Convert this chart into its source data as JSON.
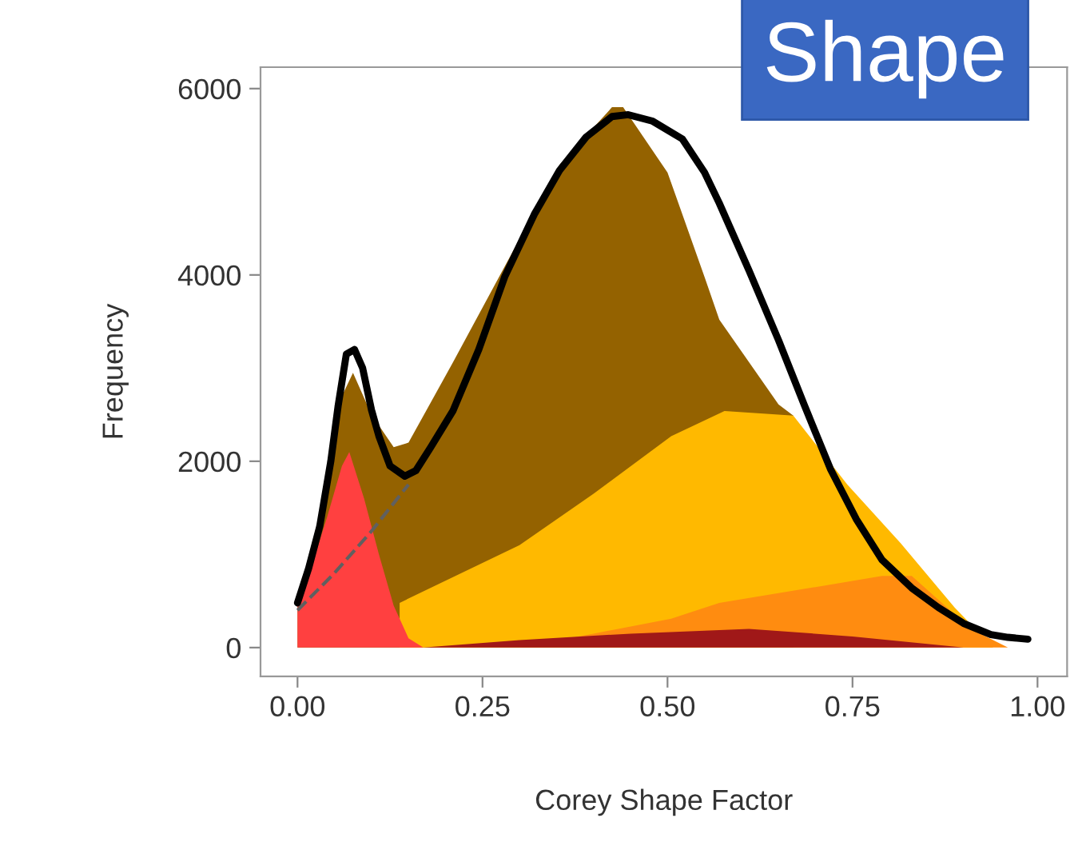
{
  "chart_data": {
    "type": "area",
    "xlabel": "Corey Shape Factor",
    "ylabel": "Frequency",
    "annotations": [
      "Shape"
    ],
    "xlim": [
      -0.05,
      1.04
    ],
    "ylim": [
      -310,
      6230
    ],
    "xticks": [
      {
        "value": 0,
        "label": "0.00"
      },
      {
        "value": 0.25,
        "label": "0.25"
      },
      {
        "value": 0.5,
        "label": "0.50"
      },
      {
        "value": 0.75,
        "label": "0.75"
      },
      {
        "value": 1,
        "label": "1.00"
      }
    ],
    "yticks": [
      0,
      2000,
      4000,
      6000
    ],
    "grid": false,
    "legend": false,
    "series": [
      {
        "color": "#946200",
        "x": [
          0,
          0.04,
          0.06,
          0.075,
          0.1,
          0.13,
          0.15,
          0.21,
          0.28,
          0.354,
          0.425,
          0.44,
          0.5,
          0.55,
          0.57,
          0.65,
          0.67
        ],
        "values": [
          500,
          1600,
          2700,
          2950,
          2500,
          2150,
          2200,
          3060,
          4090,
          5180,
          5800,
          5800,
          5100,
          3980,
          3520,
          2610,
          2490
        ]
      },
      {
        "color": "#ffb900",
        "x": [
          0.138,
          0.3,
          0.4,
          0.505,
          0.577,
          0.67,
          0.743,
          0.815,
          0.888,
          0.94
        ],
        "values": [
          480,
          1100,
          1650,
          2270,
          2540,
          2490,
          1750,
          1120,
          430,
          0
        ]
      },
      {
        "color": "#ff8c10",
        "x": [
          0.3,
          0.4,
          0.505,
          0.57,
          0.7,
          0.79,
          0.83,
          0.91,
          0.96
        ],
        "values": [
          0,
          150,
          310,
          480,
          650,
          770,
          770,
          200,
          0
        ]
      },
      {
        "color": "#a01818",
        "x": [
          0.17,
          0.3,
          0.45,
          0.61,
          0.75,
          0.9
        ],
        "values": [
          0,
          80,
          150,
          200,
          120,
          0
        ]
      },
      {
        "color": "#ff4040",
        "x": [
          0,
          0.02,
          0.04,
          0.06,
          0.07,
          0.09,
          0.11,
          0.13,
          0.15,
          0.17
        ],
        "values": [
          500,
          900,
          1400,
          1950,
          2100,
          1600,
          1000,
          450,
          100,
          0
        ]
      },
      {
        "type": "line",
        "color": "#606060",
        "line_style": "dashed",
        "x": [
          0,
          0.05,
          0.1,
          0.15
        ],
        "values": [
          400,
          800,
          1250,
          1750
        ]
      },
      {
        "type": "line",
        "color": "#000000",
        "line_style": "solid",
        "x": [
          0,
          0.015,
          0.03,
          0.045,
          0.055,
          0.066,
          0.077,
          0.088,
          0.1,
          0.11,
          0.125,
          0.145,
          0.16,
          0.18,
          0.21,
          0.245,
          0.28,
          0.32,
          0.354,
          0.39,
          0.425,
          0.447,
          0.48,
          0.52,
          0.55,
          0.57,
          0.61,
          0.65,
          0.685,
          0.72,
          0.755,
          0.79,
          0.83,
          0.866,
          0.9,
          0.937,
          0.96,
          0.987
        ],
        "values": [
          480,
          850,
          1300,
          2000,
          2600,
          3150,
          3200,
          3000,
          2550,
          2270,
          1950,
          1840,
          1900,
          2150,
          2540,
          3200,
          3980,
          4650,
          5120,
          5480,
          5700,
          5720,
          5650,
          5460,
          5100,
          4770,
          4050,
          3300,
          2600,
          1920,
          1380,
          940,
          640,
          430,
          260,
          140,
          110,
          90
        ]
      }
    ]
  }
}
